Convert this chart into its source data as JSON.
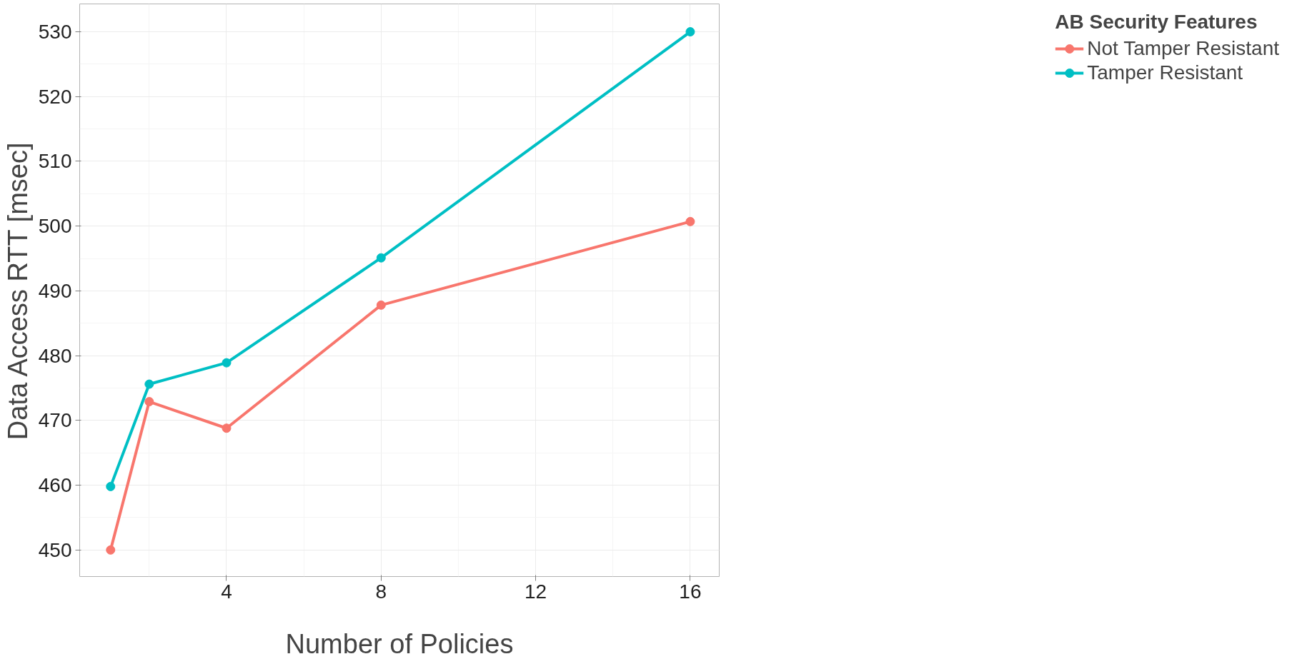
{
  "chart_data": {
    "type": "line",
    "xlabel": "Number of Policies",
    "ylabel": "Data Access RTT [msec]",
    "legend_title": "AB Security Features",
    "x": [
      1,
      2,
      4,
      8,
      16
    ],
    "series": [
      {
        "name": "Not Tamper Resistant",
        "color": "#f8766d",
        "values": [
          450,
          472.9,
          468.8,
          487.8,
          500.7
        ]
      },
      {
        "name": "Tamper Resistant",
        "color": "#00bfc4",
        "values": [
          459.8,
          475.6,
          478.9,
          495.1,
          530
        ]
      }
    ],
    "xlim": [
      0.2,
      16.75
    ],
    "ylim": [
      445.9,
      534.3
    ],
    "xticks": [
      4,
      8,
      12,
      16
    ],
    "yticks": [
      450,
      460,
      470,
      480,
      490,
      500,
      510,
      520,
      530
    ],
    "grid": true,
    "legend": "right",
    "marker": "circle",
    "line_style": "solid"
  }
}
